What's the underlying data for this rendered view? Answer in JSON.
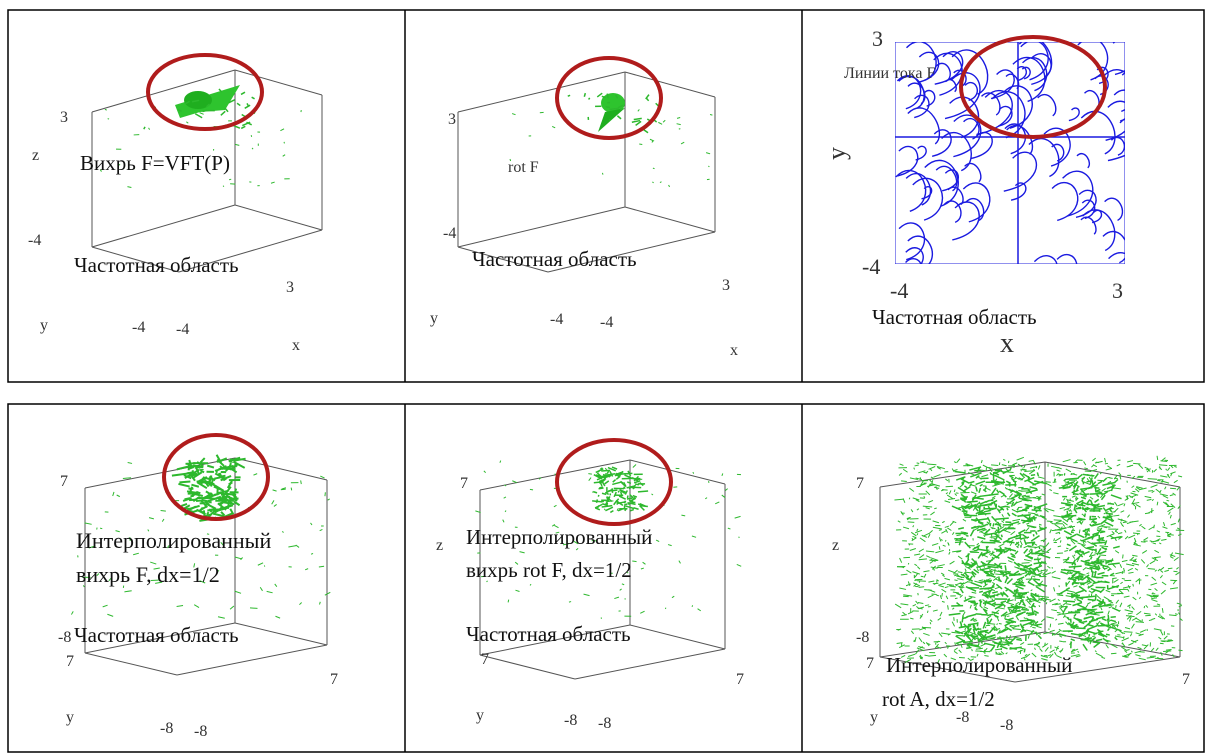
{
  "panels": [
    {
      "texts": [
        "3",
        "z",
        "Вихрь F=VFT(P)",
        "-4",
        "Частотная область",
        "3",
        "y",
        "-4",
        "-4",
        "x"
      ]
    },
    {
      "texts": [
        "3",
        "rot F",
        "-4",
        "Частотная область",
        "3",
        "y",
        "-4",
        "-4",
        "x"
      ]
    },
    {
      "texts": [
        "3",
        "Линии тока F",
        "y",
        "-4",
        "-4",
        "3",
        "Частотная область",
        "x"
      ]
    },
    {
      "texts": [
        "7",
        "Интерполированный",
        "вихрь F, dx=1/2",
        "-8",
        "Частотная область",
        "7",
        "7",
        "y",
        "-8",
        "-8"
      ]
    },
    {
      "texts": [
        "7",
        "z",
        "Интерполированный",
        "вихрь rot F, dx=1/2",
        "Частотная область",
        "7",
        "7",
        "y",
        "-8",
        "-8"
      ]
    },
    {
      "texts": [
        "7",
        "z",
        "-8",
        "7",
        "Интерполированный",
        "rot A, dx=1/2",
        "7",
        "y",
        "-8",
        "-8"
      ]
    }
  ]
}
